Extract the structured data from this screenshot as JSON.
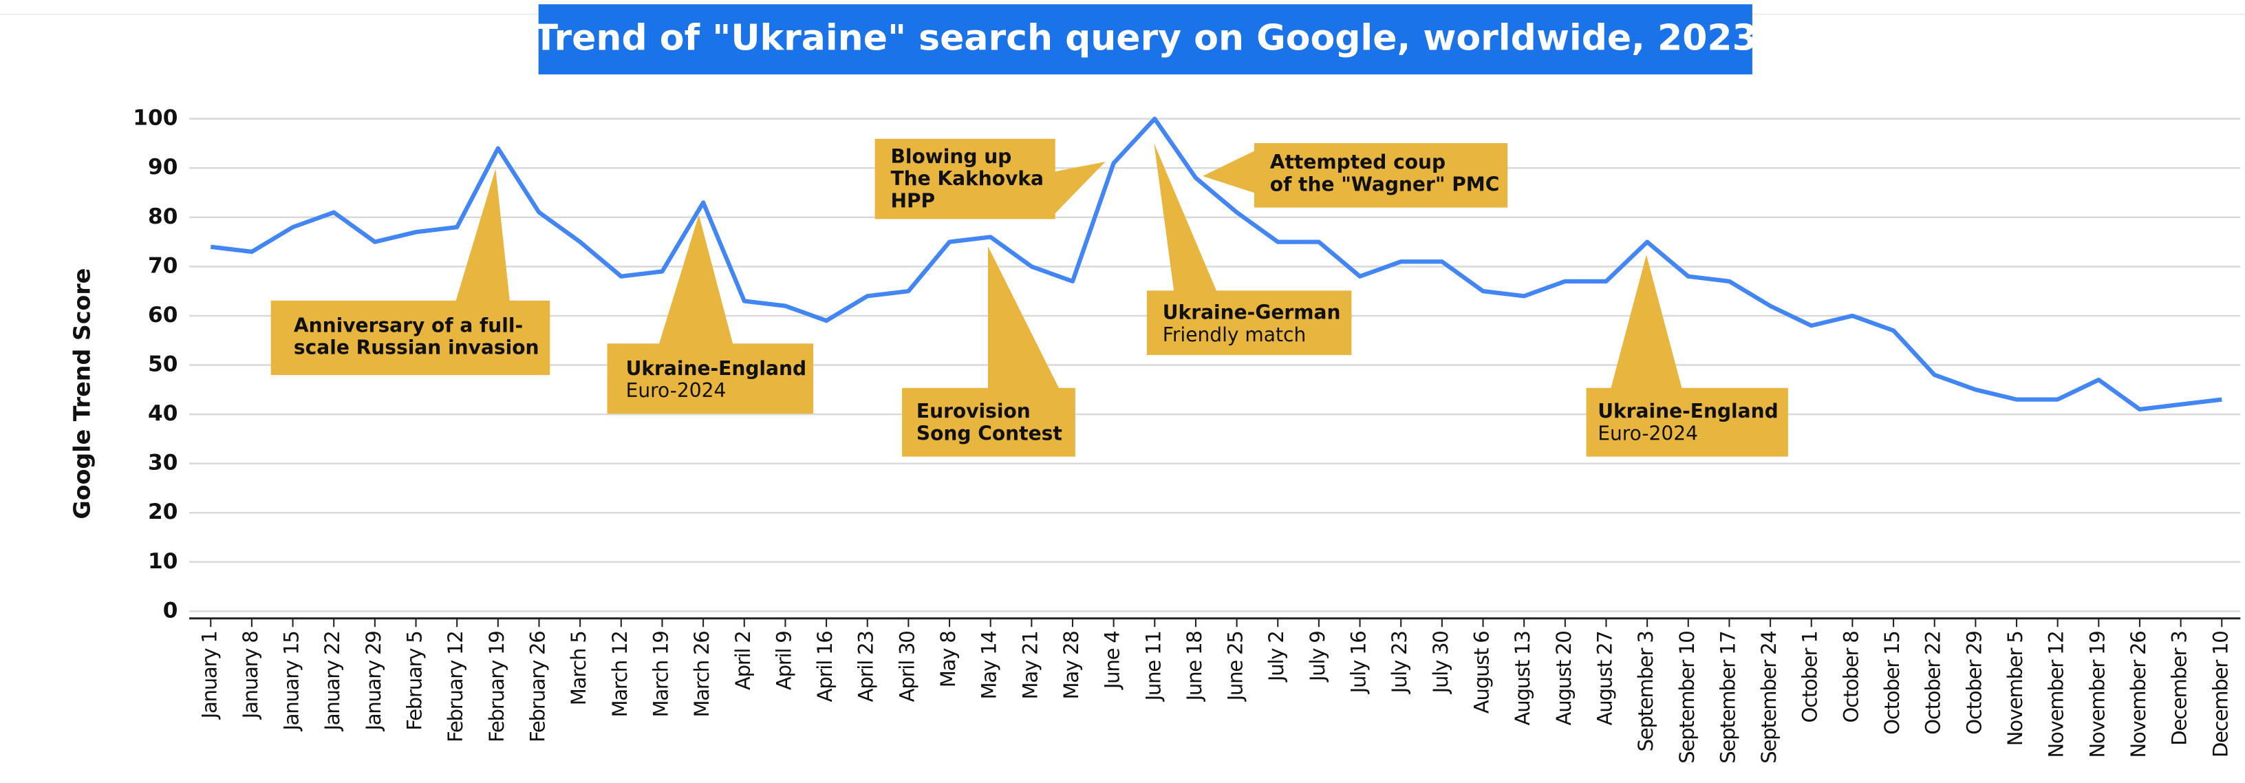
{
  "chart_data": {
    "type": "line",
    "title": "Trend of \"Ukraine\" search query on Google, worldwide, 2023",
    "y_label": "Google Trend Score",
    "categories": [
      "January 1",
      "January 8",
      "January 15",
      "January 22",
      "January 29",
      "February 5",
      "February 12",
      "February 19",
      "February 26",
      "March 5",
      "March 12",
      "March 19",
      "March 26",
      "April 2",
      "April 9",
      "April 16",
      "April 23",
      "April 30",
      "May 8",
      "May 14",
      "May 21",
      "May 28",
      "June 4",
      "June 11",
      "June 18",
      "June 25",
      "July 2",
      "July 9",
      "July 16",
      "July 23",
      "July 30",
      "August 6",
      "August 13",
      "August 20",
      "August 27",
      "September 3",
      "September 10",
      "September 17",
      "September 24",
      "October 1",
      "October 8",
      "October 15",
      "October 22",
      "October 29",
      "November 5",
      "November 12",
      "November 19",
      "November 26",
      "December 3",
      "December 10"
    ],
    "series": [
      {
        "name": "Ukraine",
        "color": "#4285f4",
        "values": [
          74,
          73,
          78,
          81,
          75,
          77,
          78,
          94,
          81,
          75,
          68,
          69,
          83,
          63,
          62,
          59,
          64,
          65,
          75,
          76,
          70,
          67,
          91,
          100,
          88,
          81,
          75,
          75,
          68,
          71,
          71,
          65,
          64,
          67,
          67,
          75,
          68,
          67,
          62,
          58,
          60,
          57,
          48,
          45,
          43,
          43,
          47,
          41,
          42,
          43
        ]
      }
    ],
    "ylim": [
      0,
      100
    ],
    "yticks": [
      0,
      10,
      20,
      30,
      40,
      50,
      60,
      70,
      80,
      90,
      100
    ],
    "grid": true,
    "title_color": "#1a73e8",
    "annotation_color": "#e8b53e",
    "annotations": [
      {
        "title": [
          "Anniversary of a full-",
          "scale Russian invasion"
        ]
      },
      {
        "title": [
          "Ukraine-England"
        ],
        "text": [
          "Euro-2024"
        ]
      },
      {
        "title": [
          "Blowing up",
          "The Kakhovka",
          "HPP"
        ]
      },
      {
        "title": [
          "Eurovision",
          "Song Contest"
        ]
      },
      {
        "title": [
          "Ukraine-German"
        ],
        "text": [
          "Friendly match"
        ]
      },
      {
        "title": [
          "Attempted coup",
          "of the \"Wagner\" PMC"
        ]
      },
      {
        "title": [
          "Ukraine-England"
        ],
        "text": [
          "Euro-2024"
        ]
      }
    ]
  }
}
